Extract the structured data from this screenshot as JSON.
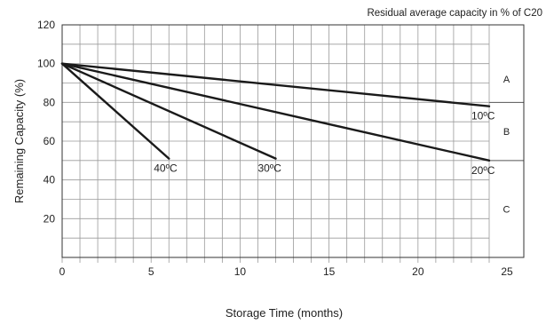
{
  "chart_data": {
    "type": "line",
    "title": "Residual average capacity in % of C20",
    "xlabel": "Storage Time (months)",
    "ylabel": "Remaining Capacity (%)",
    "xlim": [
      0,
      25
    ],
    "ylim": [
      0,
      120
    ],
    "x_ticks": [
      "0",
      "5",
      "10",
      "15",
      "20",
      "25"
    ],
    "y_ticks": [
      "20",
      "40",
      "60",
      "80",
      "100",
      "120"
    ],
    "grid": true,
    "series": [
      {
        "name": "10ºC",
        "x": [
          0,
          24
        ],
        "y": [
          100,
          78
        ]
      },
      {
        "name": "20ºC",
        "x": [
          0,
          24
        ],
        "y": [
          100,
          50
        ]
      },
      {
        "name": "30ºC",
        "x": [
          0,
          12
        ],
        "y": [
          100,
          51
        ]
      },
      {
        "name": "40ºC",
        "x": [
          0,
          6
        ],
        "y": [
          100,
          51
        ]
      }
    ],
    "zones": [
      {
        "label": "A",
        "from": 80,
        "to": 120
      },
      {
        "label": "B",
        "from": 50,
        "to": 80
      },
      {
        "label": "C",
        "from": 0,
        "to": 50
      }
    ],
    "colors": {
      "line": "#1a1a1a",
      "grid": "#9a9a9a"
    }
  }
}
